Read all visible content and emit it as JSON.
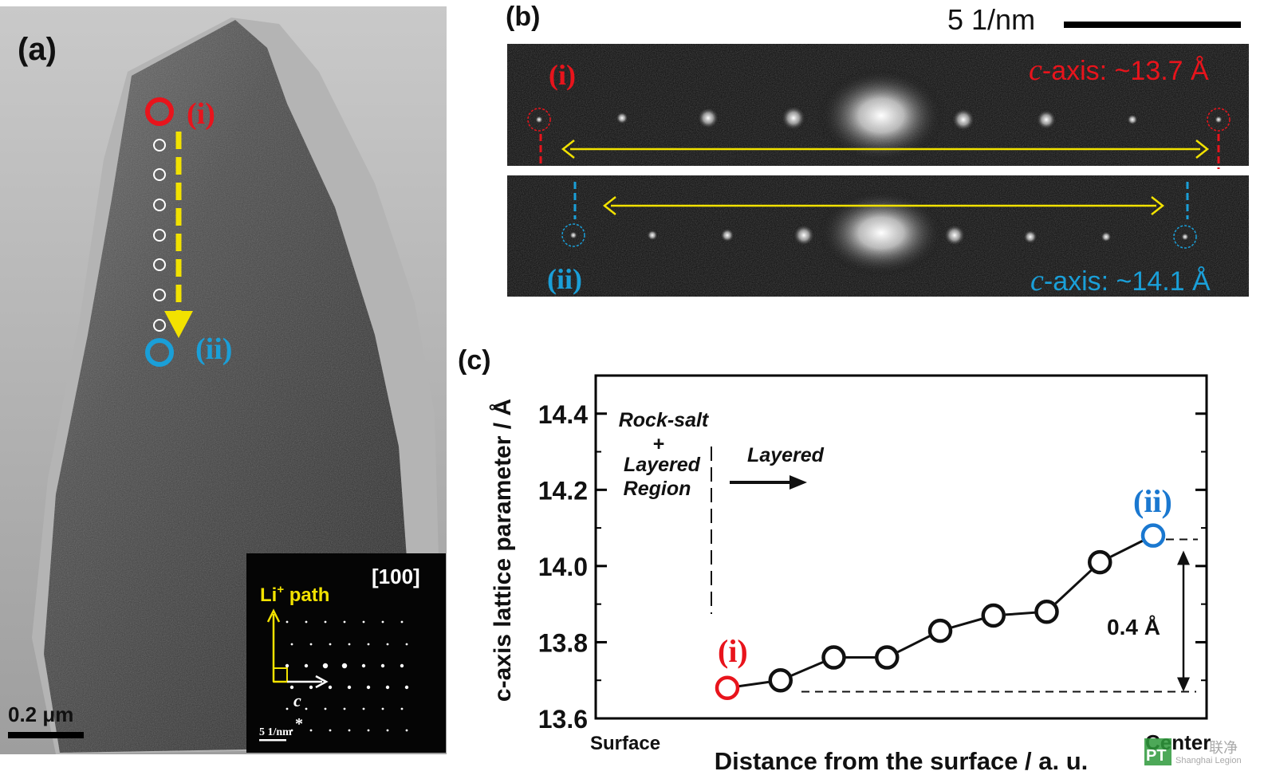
{
  "panel_a": {
    "label": "(a)",
    "point_i_label": "(i)",
    "point_ii_label": "(ii)",
    "scale_bar": "0.2 μm",
    "inset": {
      "zone_axis": "[100]",
      "li_path": "Li",
      "li_sup": "+",
      "li_path_suffix": " path",
      "c_axis": "c",
      "c_star": "*",
      "scale": "5 1/nm"
    },
    "colors": {
      "i": "#e8141c",
      "ii": "#1a9fd8",
      "path": "#f2e200"
    }
  },
  "panel_b": {
    "label": "(b)",
    "scale_text": "5 1/nm",
    "strip1": {
      "label": "(i)",
      "c_prefix": "c",
      "c_text": "-axis: ~13.7 Å"
    },
    "strip2": {
      "label": "(ii)",
      "c_prefix": "c",
      "c_text": "-axis: ~14.1 Å"
    }
  },
  "panel_c": {
    "label": "(c)",
    "ylabel": "c-axis lattice parameter / Å",
    "xlabel": "Distance from the surface / a. u.",
    "x_start_label": "Surface",
    "x_end_label": "Center",
    "region_rocksalt": [
      "Rock-salt",
      "+",
      "Layered",
      "Region"
    ],
    "region_layered": "Layered",
    "delta_label": "0.4 Å",
    "point_i_label": "(i)",
    "point_ii_label": "(ii)"
  },
  "watermark": {
    "logo": "PT",
    "text_cn": "联净",
    "text_en": "Shanghai Legion"
  },
  "chart_data": {
    "type": "scatter",
    "title": "",
    "xlabel": "Distance from the surface / a. u.",
    "ylabel": "c-axis lattice parameter / Å",
    "xlim": [
      0,
      10
    ],
    "ylim": [
      13.6,
      14.5
    ],
    "yticks": [
      13.6,
      13.8,
      14.0,
      14.2,
      14.4
    ],
    "grid": false,
    "legend": "none",
    "series": [
      {
        "x": [
          1,
          2,
          3,
          4,
          5,
          6,
          7,
          8,
          9
        ],
        "y": [
          13.68,
          13.7,
          13.76,
          13.76,
          13.83,
          13.87,
          13.88,
          14.01,
          14.08
        ]
      }
    ],
    "highlight": [
      {
        "index": 0,
        "label": "(i)",
        "color": "#e8141c"
      },
      {
        "index": 8,
        "label": "(ii)",
        "color": "#1a78d0"
      }
    ],
    "reference_levels": [
      13.67,
      14.07
    ],
    "region_boundary_x": 0.25
  }
}
